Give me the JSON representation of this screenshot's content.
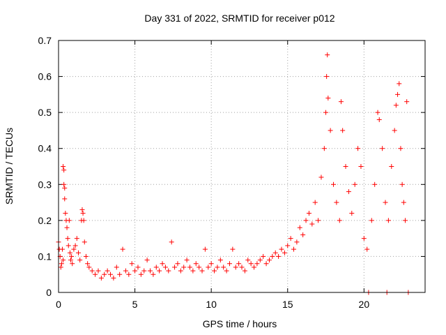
{
  "chart_data": {
    "type": "scatter",
    "title": "Day 331 of 2022, SRMTID for receiver p012",
    "xlabel": "GPS time / hours",
    "ylabel": "SRMTID / TECUs",
    "xlim": [
      0,
      24
    ],
    "ylim": [
      0,
      0.7
    ],
    "x_ticks": [
      0,
      5,
      10,
      15,
      20
    ],
    "y_ticks": [
      0,
      0.1,
      0.2,
      0.3,
      0.4,
      0.5,
      0.6,
      0.7
    ],
    "x_tick_labels": [
      "0",
      "5",
      "10",
      "15",
      "20"
    ],
    "y_tick_labels": [
      "0",
      "0.1",
      "0.2",
      "0.3",
      "0.4",
      "0.5",
      "0.6",
      "0.7"
    ],
    "grid": true,
    "marker": "plus",
    "color": "#ff0000",
    "series": [
      {
        "name": "p012",
        "points": [
          [
            0.0,
            0.14
          ],
          [
            0.05,
            0.12
          ],
          [
            0.1,
            0.1
          ],
          [
            0.15,
            0.07
          ],
          [
            0.2,
            0.08
          ],
          [
            0.25,
            0.12
          ],
          [
            0.3,
            0.09
          ],
          [
            0.3,
            0.35
          ],
          [
            0.35,
            0.34
          ],
          [
            0.35,
            0.3
          ],
          [
            0.4,
            0.29
          ],
          [
            0.4,
            0.26
          ],
          [
            0.45,
            0.22
          ],
          [
            0.5,
            0.2
          ],
          [
            0.55,
            0.18
          ],
          [
            0.6,
            0.15
          ],
          [
            0.65,
            0.13
          ],
          [
            0.7,
            0.2
          ],
          [
            0.75,
            0.11
          ],
          [
            0.8,
            0.09
          ],
          [
            0.85,
            0.1
          ],
          [
            0.9,
            0.08
          ],
          [
            1.0,
            0.12
          ],
          [
            1.1,
            0.13
          ],
          [
            1.2,
            0.15
          ],
          [
            1.3,
            0.11
          ],
          [
            1.4,
            0.09
          ],
          [
            1.5,
            0.2
          ],
          [
            1.55,
            0.23
          ],
          [
            1.6,
            0.22
          ],
          [
            1.65,
            0.2
          ],
          [
            1.7,
            0.14
          ],
          [
            1.8,
            0.1
          ],
          [
            1.9,
            0.08
          ],
          [
            2.0,
            0.07
          ],
          [
            2.2,
            0.06
          ],
          [
            2.4,
            0.05
          ],
          [
            2.6,
            0.06
          ],
          [
            2.8,
            0.04
          ],
          [
            3.0,
            0.05
          ],
          [
            3.2,
            0.06
          ],
          [
            3.4,
            0.05
          ],
          [
            3.6,
            0.04
          ],
          [
            3.8,
            0.07
          ],
          [
            4.0,
            0.05
          ],
          [
            4.2,
            0.12
          ],
          [
            4.4,
            0.06
          ],
          [
            4.6,
            0.05
          ],
          [
            4.8,
            0.08
          ],
          [
            5.0,
            0.06
          ],
          [
            5.2,
            0.07
          ],
          [
            5.4,
            0.05
          ],
          [
            5.6,
            0.06
          ],
          [
            5.8,
            0.09
          ],
          [
            6.0,
            0.06
          ],
          [
            6.2,
            0.05
          ],
          [
            6.4,
            0.07
          ],
          [
            6.6,
            0.06
          ],
          [
            6.8,
            0.08
          ],
          [
            7.0,
            0.07
          ],
          [
            7.2,
            0.06
          ],
          [
            7.4,
            0.14
          ],
          [
            7.6,
            0.07
          ],
          [
            7.8,
            0.08
          ],
          [
            8.0,
            0.06
          ],
          [
            8.2,
            0.07
          ],
          [
            8.4,
            0.09
          ],
          [
            8.6,
            0.07
          ],
          [
            8.8,
            0.06
          ],
          [
            9.0,
            0.08
          ],
          [
            9.2,
            0.07
          ],
          [
            9.4,
            0.06
          ],
          [
            9.6,
            0.12
          ],
          [
            9.8,
            0.07
          ],
          [
            10.0,
            0.08
          ],
          [
            10.2,
            0.06
          ],
          [
            10.4,
            0.07
          ],
          [
            10.6,
            0.09
          ],
          [
            10.8,
            0.07
          ],
          [
            11.0,
            0.06
          ],
          [
            11.2,
            0.08
          ],
          [
            11.4,
            0.12
          ],
          [
            11.6,
            0.07
          ],
          [
            11.8,
            0.08
          ],
          [
            12.0,
            0.07
          ],
          [
            12.2,
            0.06
          ],
          [
            12.4,
            0.09
          ],
          [
            12.6,
            0.08
          ],
          [
            12.8,
            0.07
          ],
          [
            13.0,
            0.08
          ],
          [
            13.2,
            0.09
          ],
          [
            13.4,
            0.1
          ],
          [
            13.6,
            0.08
          ],
          [
            13.8,
            0.09
          ],
          [
            14.0,
            0.1
          ],
          [
            14.2,
            0.11
          ],
          [
            14.4,
            0.1
          ],
          [
            14.6,
            0.12
          ],
          [
            14.8,
            0.11
          ],
          [
            15.0,
            0.13
          ],
          [
            15.2,
            0.15
          ],
          [
            15.4,
            0.12
          ],
          [
            15.6,
            0.14
          ],
          [
            15.8,
            0.18
          ],
          [
            16.0,
            0.16
          ],
          [
            16.2,
            0.2
          ],
          [
            16.4,
            0.22
          ],
          [
            16.6,
            0.19
          ],
          [
            16.8,
            0.25
          ],
          [
            17.0,
            0.2
          ],
          [
            17.2,
            0.32
          ],
          [
            17.4,
            0.4
          ],
          [
            17.5,
            0.5
          ],
          [
            17.55,
            0.6
          ],
          [
            17.6,
            0.66
          ],
          [
            17.65,
            0.54
          ],
          [
            17.8,
            0.45
          ],
          [
            18.0,
            0.3
          ],
          [
            18.2,
            0.25
          ],
          [
            18.4,
            0.2
          ],
          [
            18.5,
            0.53
          ],
          [
            18.6,
            0.45
          ],
          [
            18.8,
            0.35
          ],
          [
            19.0,
            0.28
          ],
          [
            19.2,
            0.22
          ],
          [
            19.4,
            0.3
          ],
          [
            19.6,
            0.4
          ],
          [
            19.8,
            0.35
          ],
          [
            20.0,
            0.15
          ],
          [
            20.2,
            0.12
          ],
          [
            20.3,
            0.0
          ],
          [
            20.5,
            0.2
          ],
          [
            20.7,
            0.3
          ],
          [
            20.9,
            0.5
          ],
          [
            21.0,
            0.48
          ],
          [
            21.2,
            0.4
          ],
          [
            21.4,
            0.25
          ],
          [
            21.5,
            0.0
          ],
          [
            21.6,
            0.2
          ],
          [
            21.8,
            0.35
          ],
          [
            22.0,
            0.45
          ],
          [
            22.1,
            0.52
          ],
          [
            22.2,
            0.55
          ],
          [
            22.3,
            0.58
          ],
          [
            22.4,
            0.4
          ],
          [
            22.5,
            0.3
          ],
          [
            22.6,
            0.25
          ],
          [
            22.7,
            0.2
          ],
          [
            22.8,
            0.53
          ],
          [
            22.9,
            0.0
          ]
        ]
      }
    ]
  }
}
